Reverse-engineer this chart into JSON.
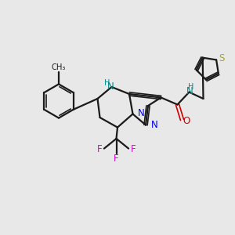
{
  "bg_color": "#e8e8e8",
  "bond_color": "#1a1a1a",
  "n_color": "#0000ee",
  "nh_color": "#008888",
  "o_color": "#cc0000",
  "f_color": "#dd00dd",
  "s_color": "#aaaa00",
  "figsize": [
    3.0,
    3.0
  ],
  "dpi": 100,
  "xlim": [
    0,
    10
  ],
  "ylim": [
    0,
    10
  ]
}
